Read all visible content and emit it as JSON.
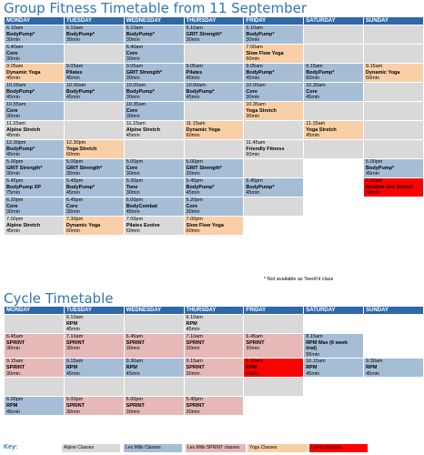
{
  "titles": {
    "group": "Group Fitness Timetable from 11 September",
    "cycle": "Cycle Timetable"
  },
  "days": [
    "MONDAY",
    "TUESDAY",
    "WEDNESDAY",
    "THURSDAY",
    "FRIDAY",
    "SATURDAY",
    "SUNDAY"
  ],
  "group_rows": [
    [
      {
        "c": "lm",
        "l": [
          "6.10am",
          "BodyPump*",
          "30min"
        ]
      },
      {
        "c": "lm",
        "l": [
          "6.10am",
          "BodyPump*",
          "30min"
        ]
      },
      {
        "c": "lm",
        "l": [
          "6.10am",
          "BodyPump*",
          "30min"
        ]
      },
      {
        "c": "lm",
        "l": [
          "6.10am",
          "GRIT Strength*",
          "30min"
        ]
      },
      {
        "c": "lm",
        "l": [
          "6.10am",
          "BodyPump*",
          "30min"
        ]
      },
      {
        "c": "e",
        "l": []
      },
      {
        "c": "e",
        "l": []
      }
    ],
    [
      {
        "c": "lm",
        "l": [
          "6.40am",
          "Core",
          "30min"
        ]
      },
      {
        "c": "e",
        "l": []
      },
      {
        "c": "lm",
        "l": [
          "6.40am",
          "Core",
          "30min"
        ]
      },
      {
        "c": "e",
        "l": []
      },
      {
        "c": "yo",
        "l": [
          "7.00am",
          "Slow Flow Yoga",
          "60min"
        ]
      },
      {
        "c": "e",
        "l": []
      },
      {
        "c": "e",
        "l": []
      }
    ],
    [
      {
        "c": "yo",
        "l": [
          "9.05am",
          "Dynamic Yoga",
          "45min"
        ]
      },
      {
        "c": "lm",
        "l": [
          "9.05am",
          "Pilates",
          "45min"
        ]
      },
      {
        "c": "lm",
        "l": [
          "9.05am",
          "GRIT Strength*",
          "30min"
        ]
      },
      {
        "c": "lm",
        "l": [
          "9.05am",
          "Pilates",
          "45min"
        ]
      },
      {
        "c": "lm",
        "l": [
          "9.05am",
          "BodyPump*",
          "45min"
        ]
      },
      {
        "c": "lm",
        "l": [
          "9.15am",
          "BodyPump*",
          "60min"
        ]
      },
      {
        "c": "yo",
        "l": [
          "9.15am",
          "Dynamic Yoga",
          "60min"
        ]
      }
    ],
    [
      {
        "c": "lm",
        "l": [
          "10.00am",
          "BodyPump*",
          "45min"
        ]
      },
      {
        "c": "lm",
        "l": [
          "10.00am",
          "BodyPump*",
          "45min"
        ]
      },
      {
        "c": "lm",
        "l": [
          "10.00am",
          "BodyPump*",
          "30min"
        ]
      },
      {
        "c": "lm",
        "l": [
          "10.00am",
          "BodyPump*",
          "45min"
        ]
      },
      {
        "c": "lm",
        "l": [
          "10.00am",
          "Core",
          "30min"
        ]
      },
      {
        "c": "lm",
        "l": [
          "10.30am",
          "Core",
          "45min"
        ]
      },
      {
        "c": "e",
        "l": []
      }
    ],
    [
      {
        "c": "lm",
        "l": [
          "10.55am",
          "Core",
          "30min"
        ]
      },
      {
        "c": "e",
        "l": []
      },
      {
        "c": "lm",
        "l": [
          "10.35am",
          "Core",
          "30min"
        ]
      },
      {
        "c": "e",
        "l": []
      },
      {
        "c": "yo",
        "l": [
          "10.35am",
          "Yoga Stretch",
          "30min"
        ]
      },
      {
        "c": "e",
        "l": []
      },
      {
        "c": "e",
        "l": []
      }
    ],
    [
      {
        "c": "al",
        "l": [
          "11.15am",
          "Alpine Stretch",
          "45min"
        ]
      },
      {
        "c": "e",
        "l": []
      },
      {
        "c": "al",
        "l": [
          "11.15am",
          "Alpine Stretch",
          "45min"
        ]
      },
      {
        "c": "yo",
        "l": [
          "11.15am",
          "Dynamic Yoga",
          "60min"
        ]
      },
      {
        "c": "e",
        "l": []
      },
      {
        "c": "yo",
        "l": [
          "11.15am",
          "Yoga Stretch",
          "45min"
        ]
      },
      {
        "c": "e",
        "l": []
      }
    ],
    [
      {
        "c": "lm",
        "l": [
          "12.30pm",
          "BodyPump*",
          "45min"
        ]
      },
      {
        "c": "yo",
        "l": [
          "12.30pm",
          "Yoga Stretch",
          "60min"
        ]
      },
      {
        "c": "e",
        "l": []
      },
      {
        "c": "e",
        "l": []
      },
      {
        "c": "al",
        "l": [
          "11.45am",
          "Friendly Fitness",
          "60min"
        ]
      },
      {
        "c": "e",
        "l": []
      },
      {
        "c": "e",
        "l": []
      }
    ],
    [
      {
        "c": "lm",
        "l": [
          "5.00pm",
          "GRIT Strength*",
          "30min"
        ]
      },
      {
        "c": "lm",
        "l": [
          "5.00pm",
          "GRIT Strength*",
          "30min"
        ]
      },
      {
        "c": "lm",
        "l": [
          "5.00pm",
          "Core",
          "30min"
        ]
      },
      {
        "c": "lm",
        "l": [
          "5.00pm",
          "GRIT Strength*",
          "30min"
        ]
      },
      {
        "c": "e",
        "l": []
      },
      {
        "c": "w",
        "l": []
      },
      {
        "c": "lm",
        "l": [
          "5.00pm",
          "BodyPump*",
          "45min"
        ]
      }
    ],
    [
      {
        "c": "lm",
        "l": [
          "5.45pm",
          "BodyPump XP",
          "75min"
        ]
      },
      {
        "c": "lm",
        "l": [
          "5.45pm",
          "BodyPump*",
          "45min"
        ]
      },
      {
        "c": "lm",
        "l": [
          "5.30pm",
          "Tone",
          "30min"
        ]
      },
      {
        "c": "lm",
        "l": [
          "5.45pm",
          "BodyPump*",
          "45min"
        ]
      },
      {
        "c": "lm",
        "l": [
          "5.45pm",
          "BodyPump*",
          "45min"
        ]
      },
      {
        "c": "w",
        "l": []
      },
      {
        "c": "la",
        "l": [
          "6.00pm",
          "Breathe and Stretch",
          "60min"
        ]
      }
    ],
    [
      {
        "c": "lm",
        "l": [
          "6.20pm",
          "Core",
          "30min"
        ]
      },
      {
        "c": "lm",
        "l": [
          "6.45pm",
          "Core",
          "30min"
        ]
      },
      {
        "c": "lm",
        "l": [
          "6.00pm",
          "BodyCombat",
          "45min"
        ]
      },
      {
        "c": "lm",
        "l": [
          "6.20pm",
          "Core",
          "30min"
        ]
      },
      {
        "c": "e",
        "l": []
      },
      {
        "c": "w",
        "l": []
      },
      {
        "c": "w",
        "l": []
      }
    ],
    [
      {
        "c": "al",
        "l": [
          "7.00pm",
          "Alpine Stretch",
          "45min"
        ]
      },
      {
        "c": "yo",
        "l": [
          "7.30pm",
          "Dynamic Yoga",
          "60min"
        ]
      },
      {
        "c": "al",
        "l": [
          "7.00pm",
          "Pilates Evolve",
          "60min"
        ]
      },
      {
        "c": "yo",
        "l": [
          "7.00pm",
          "Slow Flow Yoga",
          "60min"
        ]
      },
      {
        "c": "w",
        "l": []
      },
      {
        "c": "w",
        "l": []
      },
      {
        "c": "w",
        "l": []
      }
    ]
  ],
  "note": "* Not available as TeenFit class",
  "cycle_rows": [
    [
      {
        "c": "e",
        "l": []
      },
      {
        "c": "al",
        "l": [
          "6.10am",
          "RPM",
          "45min"
        ]
      },
      {
        "c": "e",
        "l": []
      },
      {
        "c": "al",
        "l": [
          "6.10am",
          "RPM",
          "45min"
        ]
      },
      {
        "c": "e",
        "l": []
      },
      {
        "c": "w",
        "l": []
      },
      {
        "c": "w",
        "l": []
      }
    ],
    [
      {
        "c": "sp",
        "l": [
          "6.45am",
          "SPRINT",
          "30min"
        ]
      },
      {
        "c": "sp",
        "l": [
          "7.10am",
          "SPRINT",
          "30min"
        ]
      },
      {
        "c": "sp",
        "l": [
          "6.45am",
          "SPRINT",
          "30min"
        ]
      },
      {
        "c": "sp",
        "l": [
          "7.10am",
          "SPRINT",
          "30min"
        ]
      },
      {
        "c": "sp",
        "l": [
          "6.45am",
          "SPRINT",
          "30min"
        ]
      },
      {
        "c": "lm",
        "l": [
          "8.15am",
          "RPM Max (6 week",
          "trial)",
          "55min"
        ]
      },
      {
        "c": "w",
        "l": []
      }
    ],
    [
      {
        "c": "sp",
        "l": [
          "9.15am",
          "SPRINT",
          "30min"
        ]
      },
      {
        "c": "lm",
        "l": [
          "9.15am",
          "RPM",
          "45min"
        ]
      },
      {
        "c": "lm",
        "l": [
          "9.30am",
          "RPM",
          "45min"
        ]
      },
      {
        "c": "sp",
        "l": [
          "9.15am",
          "SPRINT",
          "30min"
        ]
      },
      {
        "c": "la",
        "l": [
          "9.15am",
          "RPM",
          "45min"
        ]
      },
      {
        "c": "lm",
        "l": [
          "10.15am",
          "RPM",
          "45min"
        ]
      },
      {
        "c": "lm",
        "l": [
          "9.30am",
          "RPM",
          "45min"
        ]
      }
    ],
    [
      {
        "c": "e",
        "l": []
      },
      {
        "c": "e",
        "l": []
      },
      {
        "c": "e",
        "l": []
      },
      {
        "c": "e",
        "l": []
      },
      {
        "c": "e",
        "l": []
      },
      {
        "c": "w",
        "l": []
      },
      {
        "c": "w",
        "l": []
      }
    ],
    [
      {
        "c": "lm",
        "l": [
          "6.00pm",
          "RPM",
          "45min"
        ]
      },
      {
        "c": "sp",
        "l": [
          "6.00pm",
          "SPRINT",
          "30min"
        ]
      },
      {
        "c": "sp",
        "l": [
          "6.00pm",
          "SPRINT",
          "30min"
        ]
      },
      {
        "c": "sp",
        "l": [
          "5.45pm",
          "SPRINT",
          "30min"
        ]
      },
      {
        "c": "w",
        "l": []
      },
      {
        "c": "w",
        "l": []
      },
      {
        "c": "w",
        "l": []
      }
    ]
  ],
  "key": {
    "label": "Key:",
    "items": [
      {
        "label": "Alpine Classes",
        "color": "#d9d9d9"
      },
      {
        "label": "Les Mills Classes",
        "color": "#a6bdd6"
      },
      {
        "label": "Les Mills SPRINT classes",
        "color": "#e6b8b8"
      },
      {
        "label": "Yoga Classes",
        "color": "#f9cfa8"
      },
      {
        "label": "Latest changes",
        "color": "#ff0000"
      }
    ]
  }
}
